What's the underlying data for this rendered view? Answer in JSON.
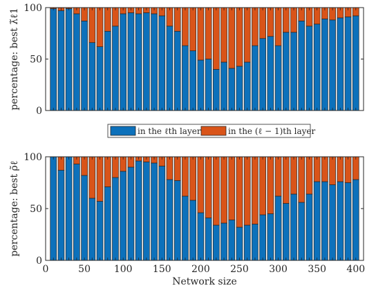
{
  "colors": {
    "blue": "#0d71bb",
    "orange": "#d95419",
    "axis": "#262626"
  },
  "legend": {
    "items": [
      {
        "label": "in the ℓth layer",
        "color": "#0d71bb"
      },
      {
        "label": "in the (ℓ − 1)th layer",
        "color": "#d95419"
      }
    ],
    "placement": "between-panels"
  },
  "chart_data": [
    {
      "type": "bar",
      "stacked": true,
      "ylabel": "percentage:  best λ̃ℓ1",
      "ylim": [
        0,
        100
      ],
      "yticks": [
        0,
        50,
        100
      ],
      "xlim": [
        0,
        410
      ],
      "xticks": [],
      "x": [
        10,
        20,
        30,
        40,
        50,
        60,
        70,
        80,
        90,
        100,
        110,
        120,
        130,
        140,
        150,
        160,
        170,
        180,
        190,
        200,
        210,
        220,
        230,
        240,
        250,
        260,
        270,
        280,
        290,
        300,
        310,
        320,
        330,
        340,
        350,
        360,
        370,
        380,
        390,
        400
      ],
      "series": [
        {
          "name": "in the ℓth layer",
          "values": [
            99,
            97,
            99,
            94,
            87,
            66,
            62,
            77,
            82,
            94,
            95,
            94,
            95,
            94,
            92,
            82,
            77,
            63,
            58,
            49,
            50,
            40,
            47,
            41,
            43,
            47,
            63,
            70,
            72,
            63,
            76,
            76,
            87,
            82,
            84,
            89,
            88,
            90,
            91,
            92
          ]
        },
        {
          "name": "in the (ℓ − 1)th layer",
          "values": [
            1,
            3,
            1,
            6,
            13,
            34,
            38,
            23,
            18,
            6,
            5,
            6,
            5,
            6,
            8,
            18,
            23,
            37,
            42,
            51,
            50,
            60,
            53,
            59,
            57,
            53,
            37,
            30,
            28,
            37,
            24,
            24,
            13,
            18,
            16,
            11,
            12,
            10,
            9,
            8
          ]
        }
      ]
    },
    {
      "type": "bar",
      "stacked": true,
      "ylabel": "percentage:  best ρ̃ℓ",
      "xlabel": "Network size",
      "ylim": [
        0,
        100
      ],
      "yticks": [
        0,
        50,
        100
      ],
      "xlim": [
        0,
        410
      ],
      "xticks": [
        0,
        50,
        100,
        150,
        200,
        250,
        300,
        350,
        400
      ],
      "x": [
        10,
        20,
        30,
        40,
        50,
        60,
        70,
        80,
        90,
        100,
        110,
        120,
        130,
        140,
        150,
        160,
        170,
        180,
        190,
        200,
        210,
        220,
        230,
        240,
        250,
        260,
        270,
        280,
        290,
        300,
        310,
        320,
        330,
        340,
        350,
        360,
        370,
        380,
        390,
        400
      ],
      "series": [
        {
          "name": "in the ℓth layer",
          "values": [
            100,
            87,
            100,
            93,
            82,
            60,
            57,
            71,
            80,
            86,
            90,
            96,
            95,
            94,
            91,
            78,
            77,
            62,
            58,
            46,
            41,
            34,
            36,
            39,
            32,
            34,
            35,
            44,
            45,
            62,
            55,
            64,
            56,
            64,
            76,
            76,
            73,
            76,
            75,
            78
          ]
        },
        {
          "name": "in the (ℓ − 1)th layer",
          "values": [
            0,
            13,
            0,
            7,
            18,
            40,
            43,
            29,
            20,
            14,
            10,
            4,
            5,
            6,
            9,
            22,
            23,
            38,
            42,
            54,
            59,
            66,
            64,
            61,
            68,
            66,
            65,
            56,
            55,
            38,
            45,
            36,
            44,
            36,
            24,
            24,
            27,
            24,
            25,
            22
          ]
        }
      ]
    }
  ]
}
